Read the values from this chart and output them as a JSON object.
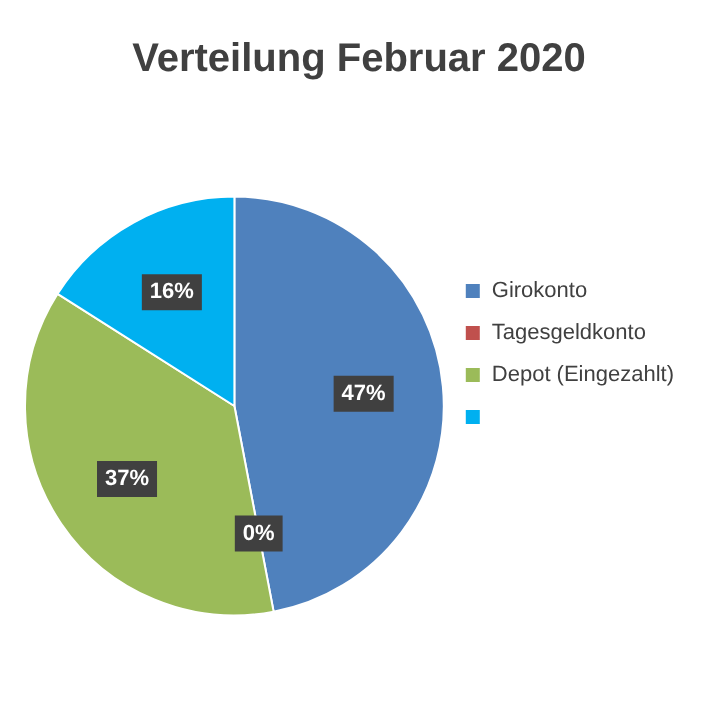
{
  "chart_data": {
    "type": "pie",
    "title": "Verteilung Februar 2020",
    "categories": [
      "Girokonto",
      "Tagesgeldkonto",
      "Depot (Eingezahlt)",
      null
    ],
    "values": [
      47,
      0,
      37,
      16
    ],
    "colors": [
      "#4f81bd",
      "#c0504d",
      "#9bbb59",
      "#00b0f0"
    ],
    "value_labels": [
      "47%",
      "0%",
      "37%",
      "16%"
    ],
    "legend": "right"
  }
}
